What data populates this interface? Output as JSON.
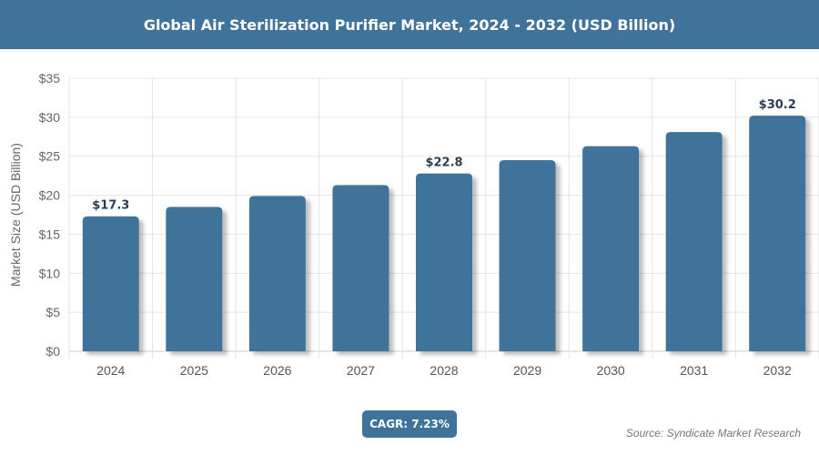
{
  "header": {
    "title": "Global Air Sterilization Purifier Market, 2024 - 2032 (USD Billion)"
  },
  "chart_data": {
    "type": "bar",
    "title": "Global Air Sterilization Purifier Market, 2024 - 2032 (USD Billion)",
    "xlabel": "",
    "ylabel": "Market Size (USD Billion)",
    "categories": [
      "2024",
      "2025",
      "2026",
      "2027",
      "2028",
      "2029",
      "2030",
      "2031",
      "2032"
    ],
    "values": [
      17.3,
      18.5,
      19.9,
      21.3,
      22.8,
      24.5,
      26.3,
      28.1,
      30.2
    ],
    "data_labels": {
      "2024": "$17.3",
      "2028": "$22.8",
      "2032": "$30.2"
    },
    "ylim": [
      0,
      35
    ],
    "yticks": [
      0,
      5,
      10,
      15,
      20,
      25,
      30,
      35
    ],
    "ytick_labels": [
      "$0",
      "$5",
      "$10",
      "$15",
      "$20",
      "$25",
      "$30",
      "$35"
    ],
    "grid": true,
    "bar_color": "#3f739a"
  },
  "footer": {
    "cagr": "CAGR: 7.23%",
    "source": "Source: Syndicate Market Research"
  }
}
